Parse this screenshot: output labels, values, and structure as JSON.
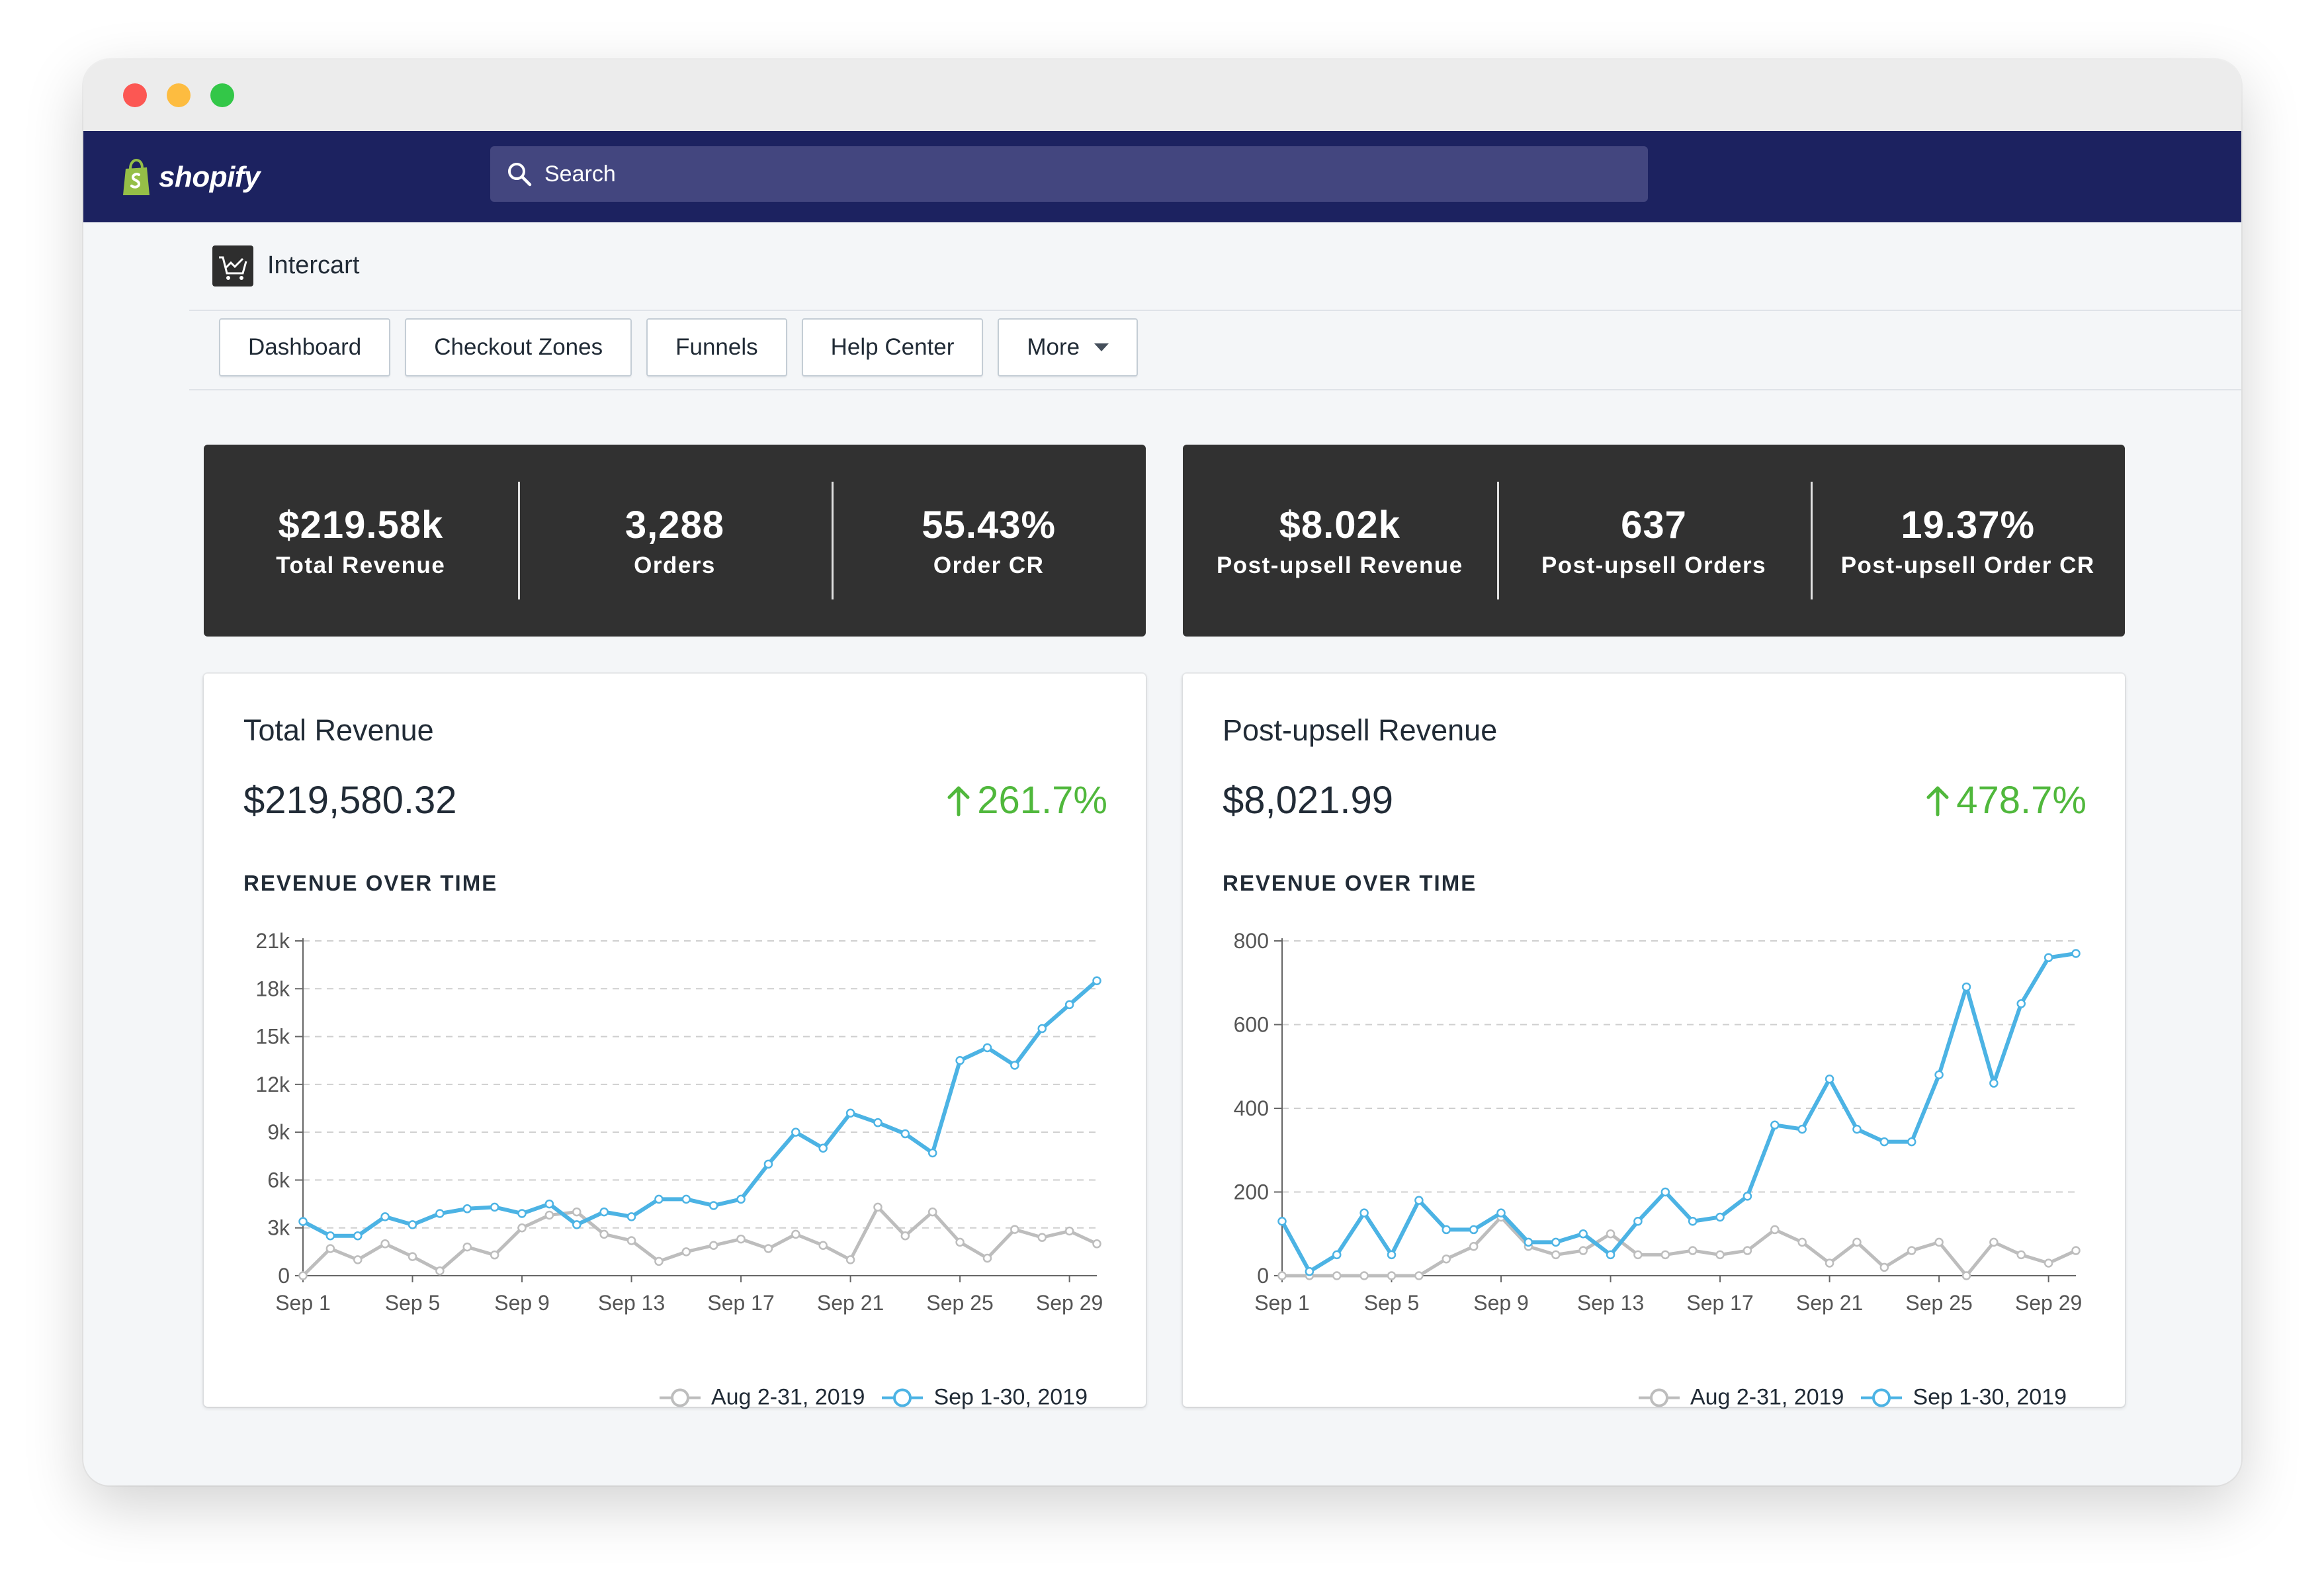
{
  "window": {
    "controls": [
      "close",
      "minimize",
      "maximize"
    ]
  },
  "topbar": {
    "brand": "shopify",
    "search_placeholder": "Search"
  },
  "app": {
    "name": "Intercart",
    "nav": [
      {
        "label": "Dashboard"
      },
      {
        "label": "Checkout Zones"
      },
      {
        "label": "Funnels"
      },
      {
        "label": "Help Center"
      },
      {
        "label": "More"
      }
    ]
  },
  "stats_left": [
    {
      "value": "$219.58k",
      "label": "Total Revenue"
    },
    {
      "value": "3,288",
      "label": "Orders"
    },
    {
      "value": "55.43%",
      "label": "Order CR"
    }
  ],
  "stats_right": [
    {
      "value": "$8.02k",
      "label": "Post-upsell Revenue"
    },
    {
      "value": "637",
      "label": "Post-upsell Orders"
    },
    {
      "value": "19.37%",
      "label": "Post-upsell Order CR"
    }
  ],
  "cards": [
    {
      "title": "Total Revenue",
      "amount": "$219,580.32",
      "delta": "261.7%",
      "subtitle": "REVENUE OVER TIME"
    },
    {
      "title": "Post-upsell Revenue",
      "amount": "$8,021.99",
      "delta": "478.7%",
      "subtitle": "REVENUE OVER TIME"
    }
  ],
  "colors": {
    "current": "#4cb3e4",
    "previous": "#bdbdbd",
    "positive": "#50b83c",
    "topbar": "#1c2260"
  },
  "chart_data": [
    {
      "type": "line",
      "title": "REVENUE OVER TIME",
      "x": [
        "Sep 1",
        "Sep 2",
        "Sep 3",
        "Sep 4",
        "Sep 5",
        "Sep 6",
        "Sep 7",
        "Sep 8",
        "Sep 9",
        "Sep 10",
        "Sep 11",
        "Sep 12",
        "Sep 13",
        "Sep 14",
        "Sep 15",
        "Sep 16",
        "Sep 17",
        "Sep 18",
        "Sep 19",
        "Sep 20",
        "Sep 21",
        "Sep 22",
        "Sep 23",
        "Sep 24",
        "Sep 25",
        "Sep 26",
        "Sep 27",
        "Sep 28",
        "Sep 29",
        "Sep 30"
      ],
      "xticks": [
        "Sep 1",
        "Sep 5",
        "Sep 9",
        "Sep 13",
        "Sep 17",
        "Sep 21",
        "Sep 25",
        "Sep 29"
      ],
      "yticks": [
        "0",
        "3k",
        "6k",
        "9k",
        "12k",
        "15k",
        "18k",
        "21k"
      ],
      "ylim": [
        0,
        21000
      ],
      "grid": true,
      "legend": "bottom-right",
      "series": [
        {
          "name": "Aug 2-31, 2019",
          "values": [
            0,
            1700,
            1000,
            2000,
            1200,
            300,
            1800,
            1300,
            3000,
            3800,
            4000,
            2600,
            2200,
            900,
            1500,
            1900,
            2300,
            1700,
            2600,
            1900,
            1000,
            4300,
            2500,
            4000,
            2100,
            1100,
            2900,
            2400,
            2800,
            2000
          ]
        },
        {
          "name": "Sep 1-30, 2019",
          "values": [
            3400,
            2500,
            2500,
            3700,
            3200,
            3900,
            4200,
            4300,
            3900,
            4500,
            3200,
            4000,
            3700,
            4800,
            4800,
            4400,
            4800,
            7000,
            9000,
            8000,
            10200,
            9600,
            8900,
            7700,
            13500,
            14300,
            13200,
            15500,
            17000,
            18500
          ]
        }
      ]
    },
    {
      "type": "line",
      "title": "REVENUE OVER TIME",
      "x": [
        "Sep 1",
        "Sep 2",
        "Sep 3",
        "Sep 4",
        "Sep 5",
        "Sep 6",
        "Sep 7",
        "Sep 8",
        "Sep 9",
        "Sep 10",
        "Sep 11",
        "Sep 12",
        "Sep 13",
        "Sep 14",
        "Sep 15",
        "Sep 16",
        "Sep 17",
        "Sep 18",
        "Sep 19",
        "Sep 20",
        "Sep 21",
        "Sep 22",
        "Sep 23",
        "Sep 24",
        "Sep 25",
        "Sep 26",
        "Sep 27",
        "Sep 28",
        "Sep 29",
        "Sep 30"
      ],
      "xticks": [
        "Sep 1",
        "Sep 5",
        "Sep 9",
        "Sep 13",
        "Sep 17",
        "Sep 21",
        "Sep 25",
        "Sep 29"
      ],
      "yticks": [
        "0",
        "200",
        "400",
        "600",
        "800"
      ],
      "ylim": [
        0,
        800
      ],
      "grid": true,
      "legend": "bottom-right",
      "series": [
        {
          "name": "Aug 2-31, 2019",
          "values": [
            0,
            0,
            0,
            0,
            0,
            0,
            40,
            70,
            140,
            70,
            50,
            60,
            100,
            50,
            50,
            60,
            50,
            60,
            110,
            80,
            30,
            80,
            20,
            60,
            80,
            0,
            80,
            50,
            30,
            60
          ]
        },
        {
          "name": "Sep 1-30, 2019",
          "values": [
            130,
            10,
            50,
            150,
            50,
            180,
            110,
            110,
            150,
            80,
            80,
            100,
            50,
            130,
            200,
            130,
            140,
            190,
            360,
            350,
            470,
            350,
            320,
            320,
            480,
            690,
            460,
            650,
            760,
            770
          ]
        }
      ]
    }
  ]
}
